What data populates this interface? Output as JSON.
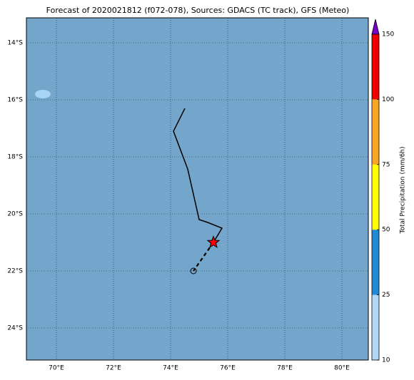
{
  "map": {
    "title": "Forecast of 2020021812 (f072-078), Sources: GDACS (TC track), GFS (Meteo)",
    "xlim": [
      68.95,
      80.925
    ],
    "ylim": [
      -25.125,
      -13.125
    ],
    "xticks": [
      {
        "value": 70,
        "label": "70°E"
      },
      {
        "value": 72,
        "label": "72°E"
      },
      {
        "value": 74,
        "label": "74°E"
      },
      {
        "value": 76,
        "label": "76°E"
      },
      {
        "value": 78,
        "label": "78°E"
      },
      {
        "value": 80,
        "label": "80°E"
      }
    ],
    "yticks": [
      {
        "value": -14,
        "label": "14°S"
      },
      {
        "value": -16,
        "label": "16°S"
      },
      {
        "value": -18,
        "label": "18°S"
      },
      {
        "value": -20,
        "label": "20°S"
      },
      {
        "value": -22,
        "label": "22°S"
      },
      {
        "value": -24,
        "label": "24°S"
      }
    ],
    "grid": true,
    "track": {
      "lon": [
        74.5,
        74.1,
        74.6,
        75.0,
        75.3,
        75.8,
        75.5
      ],
      "lat": [
        -16.3,
        -17.1,
        -18.43,
        -20.2,
        -20.3,
        -20.5,
        -21.0
      ],
      "color": "#000000"
    },
    "forecast": {
      "lon": [
        75.5,
        74.8
      ],
      "lat": [
        -21.0,
        -22.0
      ],
      "color": "#000000"
    },
    "colorbar": {
      "label": "Total Precipitation (mm/6h)",
      "levels": [
        10,
        25,
        50,
        75,
        100,
        150
      ],
      "colors": [
        "#b3d8f6",
        "#1f8ad6",
        "#ffff00",
        "#f7a522",
        "#ee0000"
      ],
      "extend_color": "#7a00c8"
    }
  }
}
